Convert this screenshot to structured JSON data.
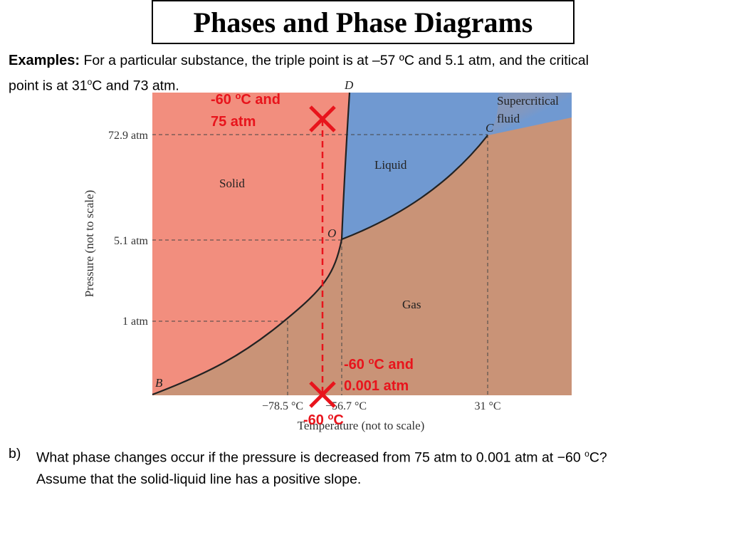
{
  "title": "Phases and Phase Diagrams",
  "examples": {
    "label": "Examples:",
    "line1": "For a particular substance, the triple point is at –57 ºC and 5.1 atm, and the critical",
    "line2_a": "point is at 31",
    "line2_sup": "o",
    "line2_b": "C and 73 atm."
  },
  "diagram": {
    "point_labels": {
      "D": "D",
      "C": "C",
      "O": "O",
      "B": "B"
    },
    "regions": {
      "solid": "Solid",
      "liquid": "Liquid",
      "gas": "Gas",
      "supercritical_1": "Supercritical",
      "supercritical_2": "fluid"
    },
    "y_ticks": [
      "72.9 atm",
      "5.1 atm",
      "1 atm"
    ],
    "x_ticks": [
      "−78.5 °C",
      "−56.7 °C",
      "31 °C"
    ],
    "y_axis_label": "Pressure (not to scale)",
    "x_axis_label": "Temperature (not to scale)",
    "colors": {
      "solid": "#f28e7e",
      "liquid": "#7099d1",
      "gas": "#c99377",
      "marker": "#e8141c"
    }
  },
  "annotations": {
    "top_1": "-60 ",
    "top_sup": "o",
    "top_2": "C and",
    "top_line2": "75 atm",
    "bottom_1": "-60 ",
    "bottom_sup": "o",
    "bottom_2": "C and",
    "bottom_line2": "0.001 atm",
    "temp_1": "-60 ",
    "temp_sup": "o",
    "temp_2": "C"
  },
  "question": {
    "marker": "b)",
    "line1_a": "What phase changes occur if the pressure is decreased from 75 atm to 0.001 atm at −60 ",
    "line1_sup": "o",
    "line1_b": "C?",
    "line2": "Assume that the solid-liquid line has a positive slope."
  }
}
